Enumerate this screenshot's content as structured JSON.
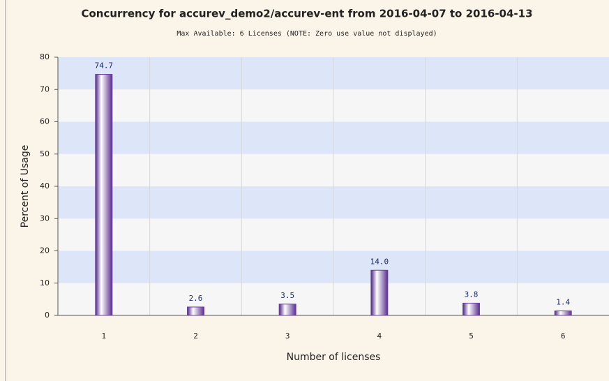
{
  "chart_data": {
    "type": "bar",
    "title": "Concurrency for accurev_demo2/accurev-ent from 2016-04-07 to 2016-04-13",
    "subtitle": "Max Available: 6 Licenses (NOTE: Zero use value not displayed)",
    "x_label": "Number of licenses",
    "y_label": "Percent of Usage",
    "categories": [
      "1",
      "2",
      "3",
      "4",
      "5",
      "6"
    ],
    "values": [
      74.7,
      2.6,
      3.5,
      14.0,
      3.8,
      1.4
    ],
    "value_labels": [
      "74.7",
      "2.6",
      "3.5",
      "14.0",
      "3.8",
      "1.4"
    ],
    "color": "#6a3fa0",
    "ylim": [
      0,
      80
    ],
    "yticks": [
      0,
      10,
      20,
      30,
      40,
      50,
      60,
      70,
      80
    ],
    "grid": true
  }
}
